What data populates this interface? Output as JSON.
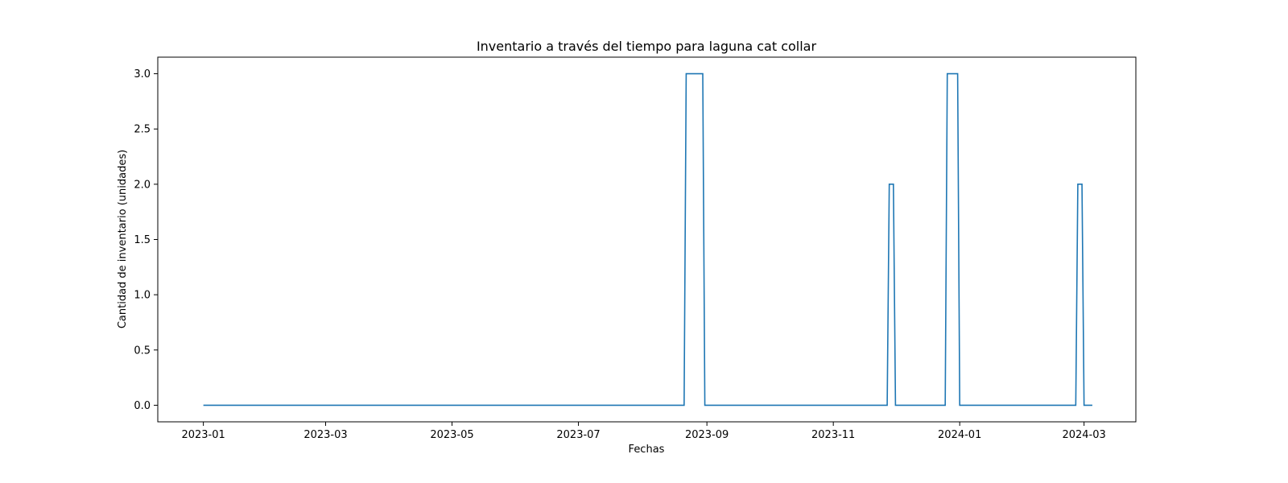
{
  "chart_data": {
    "type": "line",
    "title": "Inventario a través del tiempo para laguna cat collar",
    "xlabel": "Fechas",
    "ylabel": "Cantidad de inventario (unidades)",
    "x_type": "date",
    "xlim": [
      "2022-12-10",
      "2024-03-26"
    ],
    "ylim": [
      -0.15,
      3.15
    ],
    "x_ticks": [
      "2023-01",
      "2023-03",
      "2023-05",
      "2023-07",
      "2023-09",
      "2023-11",
      "2024-01",
      "2024-03"
    ],
    "y_ticks": [
      0.0,
      0.5,
      1.0,
      1.5,
      2.0,
      2.5,
      3.0
    ],
    "grid": false,
    "color": "#1f77b4",
    "series": [
      {
        "x": [
          "2023-01-01",
          "2023-08-21",
          "2023-08-22",
          "2023-08-30",
          "2023-08-31",
          "2023-11-27",
          "2023-11-28",
          "2023-11-30",
          "2023-12-01",
          "2023-12-25",
          "2023-12-26",
          "2023-12-31",
          "2024-01-01",
          "2024-02-26",
          "2024-02-27",
          "2024-02-29",
          "2024-03-01",
          "2024-03-05"
        ],
        "y": [
          0,
          0,
          3,
          3,
          0,
          0,
          2,
          2,
          0,
          0,
          3,
          3,
          0,
          0,
          2,
          2,
          0,
          0
        ]
      }
    ]
  }
}
